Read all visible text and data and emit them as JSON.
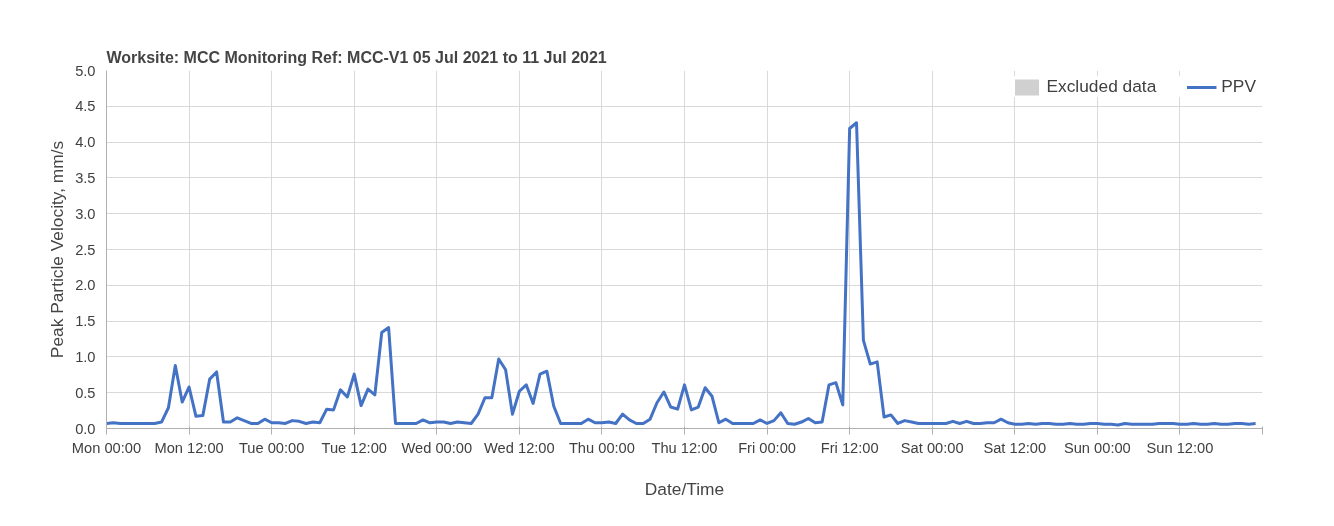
{
  "chart_data": {
    "type": "line",
    "title": "Worksite: MCC   Monitoring Ref: MCC-V1     05 Jul 2021 to 11 Jul 2021",
    "xlabel": "Date/Time",
    "ylabel": "Peak Particle Velocity, mm/s",
    "x": [
      "2021-07-05T00:00",
      "2021-07-05T01:00",
      "2021-07-05T02:00",
      "2021-07-05T03:00",
      "2021-07-05T04:00",
      "2021-07-05T05:00",
      "2021-07-05T06:00",
      "2021-07-05T07:00",
      "2021-07-05T08:00",
      "2021-07-05T09:00",
      "2021-07-05T10:00",
      "2021-07-05T11:00",
      "2021-07-05T12:00",
      "2021-07-05T13:00",
      "2021-07-05T14:00",
      "2021-07-05T15:00",
      "2021-07-05T16:00",
      "2021-07-05T17:00",
      "2021-07-05T18:00",
      "2021-07-05T19:00",
      "2021-07-05T20:00",
      "2021-07-05T21:00",
      "2021-07-05T22:00",
      "2021-07-05T23:00",
      "2021-07-06T00:00",
      "2021-07-06T01:00",
      "2021-07-06T02:00",
      "2021-07-06T03:00",
      "2021-07-06T04:00",
      "2021-07-06T05:00",
      "2021-07-06T06:00",
      "2021-07-06T07:00",
      "2021-07-06T08:00",
      "2021-07-06T09:00",
      "2021-07-06T10:00",
      "2021-07-06T11:00",
      "2021-07-06T12:00",
      "2021-07-06T13:00",
      "2021-07-06T14:00",
      "2021-07-06T15:00",
      "2021-07-06T16:00",
      "2021-07-06T17:00",
      "2021-07-06T18:00",
      "2021-07-06T19:00",
      "2021-07-06T20:00",
      "2021-07-06T21:00",
      "2021-07-06T22:00",
      "2021-07-06T23:00",
      "2021-07-07T00:00",
      "2021-07-07T01:00",
      "2021-07-07T02:00",
      "2021-07-07T03:00",
      "2021-07-07T04:00",
      "2021-07-07T05:00",
      "2021-07-07T06:00",
      "2021-07-07T07:00",
      "2021-07-07T08:00",
      "2021-07-07T09:00",
      "2021-07-07T10:00",
      "2021-07-07T11:00",
      "2021-07-07T12:00",
      "2021-07-07T13:00",
      "2021-07-07T14:00",
      "2021-07-07T15:00",
      "2021-07-07T16:00",
      "2021-07-07T17:00",
      "2021-07-07T18:00",
      "2021-07-07T19:00",
      "2021-07-07T20:00",
      "2021-07-07T21:00",
      "2021-07-07T22:00",
      "2021-07-07T23:00",
      "2021-07-08T00:00",
      "2021-07-08T01:00",
      "2021-07-08T02:00",
      "2021-07-08T03:00",
      "2021-07-08T04:00",
      "2021-07-08T05:00",
      "2021-07-08T06:00",
      "2021-07-08T07:00",
      "2021-07-08T08:00",
      "2021-07-08T09:00",
      "2021-07-08T10:00",
      "2021-07-08T11:00",
      "2021-07-08T12:00",
      "2021-07-08T13:00",
      "2021-07-08T14:00",
      "2021-07-08T15:00",
      "2021-07-08T16:00",
      "2021-07-08T17:00",
      "2021-07-08T18:00",
      "2021-07-08T19:00",
      "2021-07-08T20:00",
      "2021-07-08T21:00",
      "2021-07-08T22:00",
      "2021-07-08T23:00",
      "2021-07-09T00:00",
      "2021-07-09T01:00",
      "2021-07-09T02:00",
      "2021-07-09T03:00",
      "2021-07-09T04:00",
      "2021-07-09T05:00",
      "2021-07-09T06:00",
      "2021-07-09T07:00",
      "2021-07-09T08:00",
      "2021-07-09T09:00",
      "2021-07-09T10:00",
      "2021-07-09T11:00",
      "2021-07-09T12:00",
      "2021-07-09T13:00",
      "2021-07-09T14:00",
      "2021-07-09T15:00",
      "2021-07-09T16:00",
      "2021-07-09T17:00",
      "2021-07-09T18:00",
      "2021-07-09T19:00",
      "2021-07-09T20:00",
      "2021-07-09T21:00",
      "2021-07-09T22:00",
      "2021-07-09T23:00",
      "2021-07-10T00:00",
      "2021-07-10T01:00",
      "2021-07-10T02:00",
      "2021-07-10T03:00",
      "2021-07-10T04:00",
      "2021-07-10T05:00",
      "2021-07-10T06:00",
      "2021-07-10T07:00",
      "2021-07-10T08:00",
      "2021-07-10T09:00",
      "2021-07-10T10:00",
      "2021-07-10T11:00",
      "2021-07-10T12:00",
      "2021-07-10T13:00",
      "2021-07-10T14:00",
      "2021-07-10T15:00",
      "2021-07-10T16:00",
      "2021-07-10T17:00",
      "2021-07-10T18:00",
      "2021-07-10T19:00",
      "2021-07-10T20:00",
      "2021-07-10T21:00",
      "2021-07-10T22:00",
      "2021-07-10T23:00",
      "2021-07-11T00:00",
      "2021-07-11T01:00",
      "2021-07-11T02:00",
      "2021-07-11T03:00",
      "2021-07-11T04:00",
      "2021-07-11T05:00",
      "2021-07-11T06:00",
      "2021-07-11T07:00",
      "2021-07-11T08:00",
      "2021-07-11T09:00",
      "2021-07-11T10:00",
      "2021-07-11T11:00",
      "2021-07-11T12:00",
      "2021-07-11T13:00",
      "2021-07-11T14:00",
      "2021-07-11T15:00",
      "2021-07-11T16:00",
      "2021-07-11T17:00",
      "2021-07-11T18:00",
      "2021-07-11T19:00",
      "2021-07-11T20:00",
      "2021-07-11T21:00",
      "2021-07-11T22:00",
      "2021-07-11T23:00"
    ],
    "series": [
      {
        "name": "Excluded data",
        "type": "bar",
        "color": "#d0d0d0",
        "values": [
          null,
          null,
          null,
          null,
          null,
          null,
          null,
          null,
          null,
          null,
          null,
          null,
          null,
          null,
          null,
          null,
          null,
          null,
          null,
          null,
          null,
          null,
          null,
          null,
          null,
          null,
          null,
          null,
          null,
          null,
          null,
          null,
          null,
          null,
          null,
          null,
          null,
          null,
          null,
          null,
          null,
          null,
          null,
          null,
          null,
          null,
          null,
          null,
          null,
          null,
          null,
          null,
          null,
          null,
          null,
          null,
          null,
          null,
          null,
          null,
          null,
          null,
          null,
          null,
          null,
          null,
          null,
          null,
          null,
          null,
          null,
          null,
          null,
          null,
          null,
          null,
          null,
          null,
          null,
          null,
          null,
          null,
          null,
          null,
          null,
          null,
          null,
          null,
          null,
          null,
          null,
          null,
          null,
          null,
          null,
          null,
          null,
          null,
          null,
          null,
          null,
          null,
          null,
          null,
          null,
          null,
          null,
          null,
          null,
          null,
          null,
          null,
          null,
          null,
          null,
          null,
          null,
          null,
          null,
          null,
          null,
          null,
          null,
          null,
          null,
          null,
          null,
          null,
          null,
          null,
          null,
          null,
          null,
          null,
          null,
          null,
          null,
          null,
          null,
          null,
          null,
          null,
          null,
          null,
          null,
          null,
          null,
          null,
          null,
          null,
          null,
          null,
          null,
          null,
          null,
          null,
          null,
          null,
          null,
          null,
          null,
          null,
          null,
          null,
          null,
          null,
          null,
          null
        ]
      },
      {
        "name": "PPV",
        "color": "#4472c4",
        "values": [
          0.07,
          0.08,
          0.07,
          0.07,
          0.07,
          0.07,
          0.07,
          0.07,
          0.09,
          0.29,
          0.88,
          0.37,
          0.58,
          0.17,
          0.18,
          0.69,
          0.79,
          0.09,
          0.09,
          0.15,
          0.11,
          0.07,
          0.07,
          0.13,
          0.08,
          0.08,
          0.07,
          0.11,
          0.1,
          0.07,
          0.09,
          0.08,
          0.27,
          0.26,
          0.54,
          0.44,
          0.76,
          0.32,
          0.55,
          0.47,
          1.34,
          1.41,
          0.07,
          0.07,
          0.07,
          0.07,
          0.12,
          0.08,
          0.09,
          0.09,
          0.07,
          0.09,
          0.08,
          0.07,
          0.2,
          0.43,
          0.43,
          0.97,
          0.82,
          0.2,
          0.52,
          0.61,
          0.35,
          0.76,
          0.8,
          0.31,
          0.07,
          0.07,
          0.07,
          0.07,
          0.13,
          0.08,
          0.08,
          0.09,
          0.07,
          0.2,
          0.12,
          0.07,
          0.07,
          0.13,
          0.36,
          0.51,
          0.3,
          0.27,
          0.61,
          0.26,
          0.3,
          0.57,
          0.45,
          0.08,
          0.13,
          0.07,
          0.07,
          0.07,
          0.07,
          0.12,
          0.07,
          0.11,
          0.22,
          0.07,
          0.06,
          0.09,
          0.14,
          0.08,
          0.09,
          0.61,
          0.64,
          0.33,
          4.19,
          4.27,
          1.23,
          0.9,
          0.93,
          0.16,
          0.19,
          0.07,
          0.11,
          0.09,
          0.07,
          0.07,
          0.07,
          0.07,
          0.07,
          0.1,
          0.07,
          0.1,
          0.07,
          0.07,
          0.08,
          0.08,
          0.13,
          0.08,
          0.06,
          0.06,
          0.07,
          0.06,
          0.07,
          0.07,
          0.06,
          0.06,
          0.07,
          0.06,
          0.06,
          0.07,
          0.07,
          0.06,
          0.06,
          0.05,
          0.07,
          0.06,
          0.06,
          0.06,
          0.06,
          0.07,
          0.07,
          0.07,
          0.06,
          0.06,
          0.07,
          0.06,
          0.06,
          0.07,
          0.06,
          0.06,
          0.07,
          0.07,
          0.06,
          0.07
        ]
      }
    ],
    "xlim": [
      "2021-07-05T00:00",
      "2021-07-12T00:00"
    ],
    "xticks": [
      {
        "value": "2021-07-05T00:00",
        "label": "Mon 00:00"
      },
      {
        "value": "2021-07-05T12:00",
        "label": "Mon 12:00"
      },
      {
        "value": "2021-07-06T00:00",
        "label": "Tue 00:00"
      },
      {
        "value": "2021-07-06T12:00",
        "label": "Tue 12:00"
      },
      {
        "value": "2021-07-07T00:00",
        "label": "Wed 00:00"
      },
      {
        "value": "2021-07-07T12:00",
        "label": "Wed 12:00"
      },
      {
        "value": "2021-07-08T00:00",
        "label": "Thu 00:00"
      },
      {
        "value": "2021-07-08T12:00",
        "label": "Thu 12:00"
      },
      {
        "value": "2021-07-09T00:00",
        "label": "Fri 00:00"
      },
      {
        "value": "2021-07-09T12:00",
        "label": "Fri 12:00"
      },
      {
        "value": "2021-07-10T00:00",
        "label": "Sat 00:00"
      },
      {
        "value": "2021-07-10T12:00",
        "label": "Sat 12:00"
      },
      {
        "value": "2021-07-11T00:00",
        "label": "Sun 00:00"
      },
      {
        "value": "2021-07-11T12:00",
        "label": "Sun 12:00"
      },
      {
        "value": "2021-07-12T00:00",
        "label": null
      }
    ],
    "ylim": [
      0,
      5
    ],
    "yticks": [
      {
        "value": 0,
        "label": "0.0"
      },
      {
        "value": 0.5,
        "label": "0.5"
      },
      {
        "value": 1,
        "label": "1.0"
      },
      {
        "value": 1.5,
        "label": "1.5"
      },
      {
        "value": 2,
        "label": "2.0"
      },
      {
        "value": 2.5,
        "label": "2.5"
      },
      {
        "value": 3,
        "label": "3.0"
      },
      {
        "value": 3.5,
        "label": "3.5"
      },
      {
        "value": 4,
        "label": "4.0"
      },
      {
        "value": 4.5,
        "label": "4.5"
      },
      {
        "value": 5,
        "label": "5.0"
      }
    ],
    "grid": true,
    "legend": "top right",
    "marker": "none",
    "line_style": "solid"
  }
}
